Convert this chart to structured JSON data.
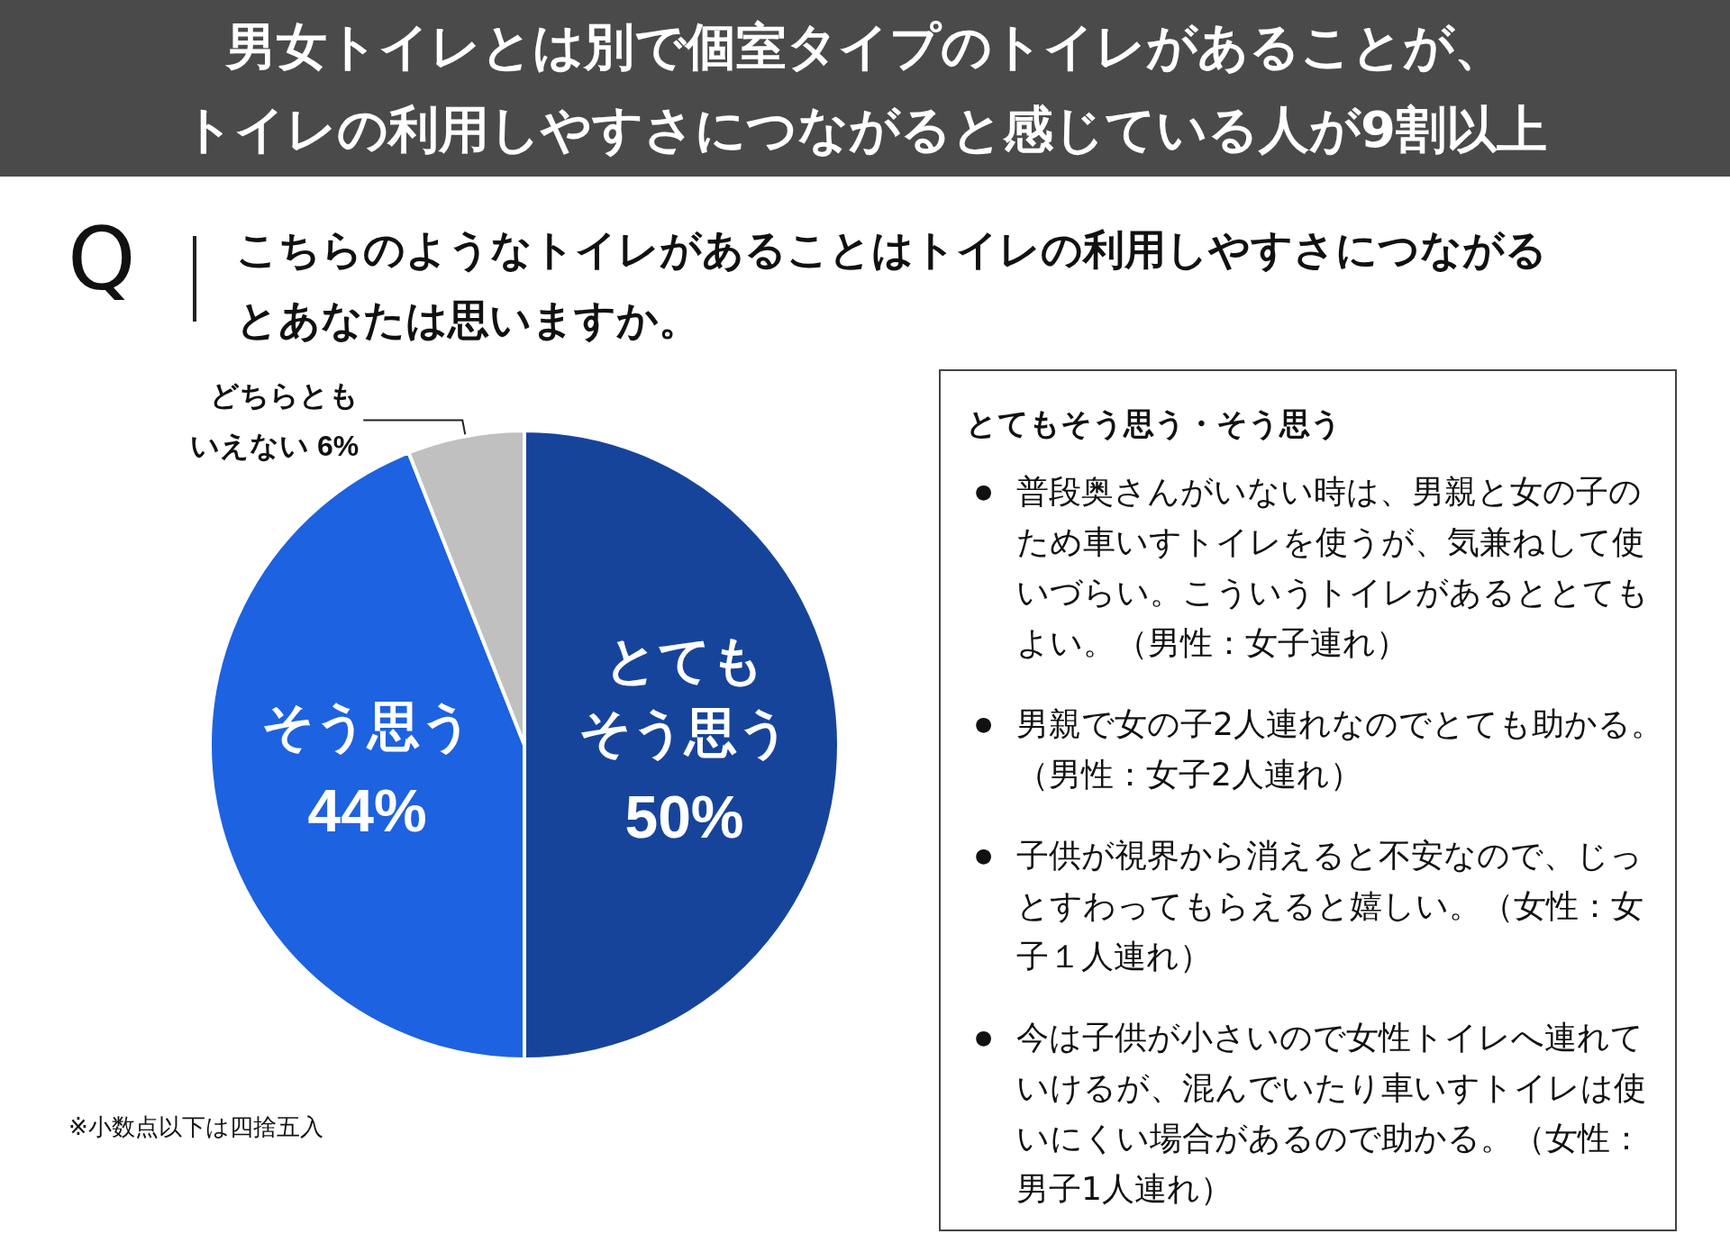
{
  "chart_data": [
    {
      "type": "pie",
      "title": "男女トイレとは別で個室タイプのトイレがあることが、トイレの利用しやすさにつながると感じている人が9割以上",
      "subtitle": "こちらのようなトイレがあることはトイレの利用しやすさにつながるとあなたは思いますか。",
      "categories": [
        "とてもそう思う",
        "そう思う",
        "どちらともいえない"
      ],
      "values": [
        50,
        44,
        6
      ],
      "value_labels": [
        "50%",
        "44%",
        "6%"
      ],
      "colors": [
        "#17449b",
        "#1d62e0",
        "#c0c0c0"
      ],
      "annotations": [
        "Q",
        "※小数点以下は四捨五入"
      ]
    },
    {
      "type": "other",
      "title": "とてもそう思う・そう思う",
      "annotations": [
        "●普段奥さんがいない時は、男親と女の子のため車いすトイレを使うが、気兼ねして使いづらい。こういうトイレがあるととてもよい。（男性：女子連れ）",
        "●男親で女の子2人連れなのでとても助かる。（男性：女子2人連れ）",
        "●子供が視界から消えると不安なので、じっとすわってもらえると嬉しい。（女性：女子１人連れ）",
        "●今は子供が小さいので女性トイレへ連れていけるが、混んでいたり車いすトイレは使いにくい場合があるので助かる。（女性：男子1人連れ）"
      ]
    }
  ]
}
